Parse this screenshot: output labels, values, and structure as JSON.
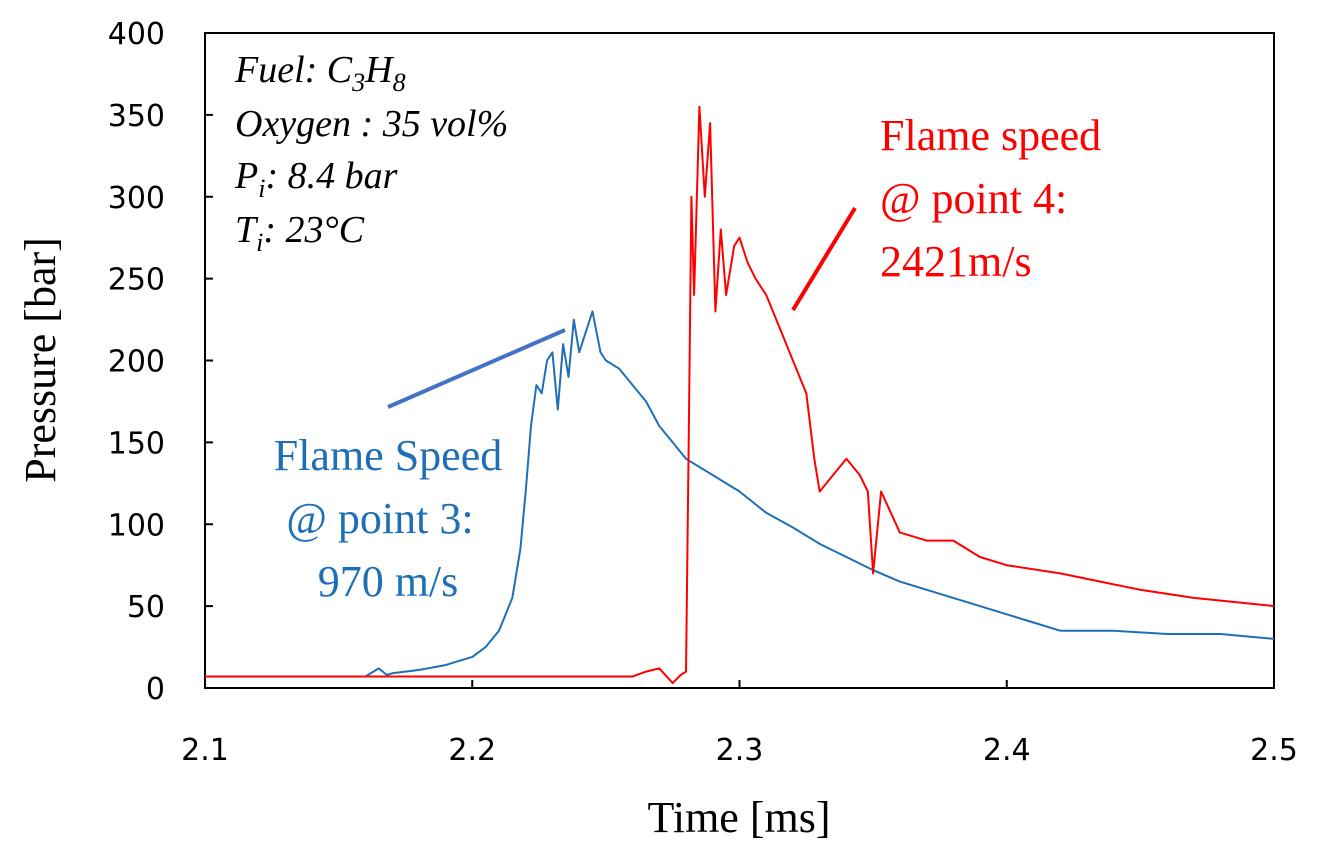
{
  "chart_data": {
    "type": "line",
    "title": "",
    "xlabel": "Time [ms]",
    "ylabel": "Pressure [bar]",
    "xlim": [
      2.1,
      2.5
    ],
    "ylim": [
      0,
      400
    ],
    "xticks": [
      "2.1",
      "2.2",
      "2.3",
      "2.4",
      "2.5"
    ],
    "yticks": [
      "0",
      "50",
      "100",
      "150",
      "200",
      "250",
      "300",
      "350",
      "400"
    ],
    "grid": false,
    "conditions": {
      "fuel_prefix": "Fuel: ",
      "fuel_c": "C",
      "fuel_c_sub": "3",
      "fuel_h": "H",
      "fuel_h_sub": "8",
      "oxygen": "Oxygen : 35 vol%",
      "p_var": "P",
      "p_sub": "i",
      "p_rest": ": 8.4 bar",
      "t_var": "T",
      "t_sub": "i",
      "t_rest": ": 23°C"
    },
    "annotations": {
      "blue": [
        "Flame Speed",
        "@ point 3:",
        "970 m/s"
      ],
      "red": [
        "Flame speed",
        "@ point 4:",
        "2421m/s"
      ]
    },
    "colors": {
      "blue": "#1f6fb7",
      "red": "#ff0000"
    },
    "series": [
      {
        "color": "#1f6fb7",
        "x": [
          2.1,
          2.16,
          2.165,
          2.168,
          2.17,
          2.18,
          2.19,
          2.2,
          2.205,
          2.21,
          2.215,
          2.218,
          2.22,
          2.222,
          2.224,
          2.226,
          2.228,
          2.23,
          2.232,
          2.234,
          2.236,
          2.238,
          2.24,
          2.243,
          2.245,
          2.248,
          2.25,
          2.255,
          2.26,
          2.265,
          2.27,
          2.275,
          2.28,
          2.29,
          2.3,
          2.31,
          2.32,
          2.33,
          2.34,
          2.35,
          2.36,
          2.38,
          2.4,
          2.41,
          2.42,
          2.44,
          2.46,
          2.48,
          2.5
        ],
        "y": [
          7,
          7,
          12,
          8,
          9,
          11,
          14,
          19,
          25,
          35,
          55,
          85,
          120,
          160,
          185,
          180,
          200,
          205,
          170,
          210,
          190,
          225,
          205,
          220,
          230,
          205,
          200,
          195,
          185,
          175,
          160,
          150,
          140,
          130,
          120,
          107,
          98,
          88,
          80,
          72,
          65,
          55,
          45,
          40,
          35,
          35,
          33,
          33,
          30
        ]
      },
      {
        "color": "#ff0000",
        "x": [
          2.1,
          2.2,
          2.26,
          2.265,
          2.27,
          2.275,
          2.278,
          2.28,
          2.281,
          2.282,
          2.283,
          2.285,
          2.287,
          2.289,
          2.291,
          2.293,
          2.295,
          2.298,
          2.3,
          2.303,
          2.306,
          2.31,
          2.315,
          2.32,
          2.325,
          2.328,
          2.33,
          2.335,
          2.34,
          2.345,
          2.348,
          2.35,
          2.353,
          2.36,
          2.37,
          2.38,
          2.39,
          2.4,
          2.42,
          2.435,
          2.45,
          2.47,
          2.5
        ],
        "y": [
          7,
          7,
          7,
          10,
          12,
          3,
          8,
          10,
          150,
          300,
          240,
          355,
          300,
          345,
          230,
          280,
          240,
          270,
          275,
          260,
          250,
          240,
          220,
          200,
          180,
          140,
          120,
          130,
          140,
          130,
          120,
          70,
          120,
          95,
          90,
          90,
          80,
          75,
          70,
          65,
          60,
          55,
          50
        ]
      }
    ]
  }
}
